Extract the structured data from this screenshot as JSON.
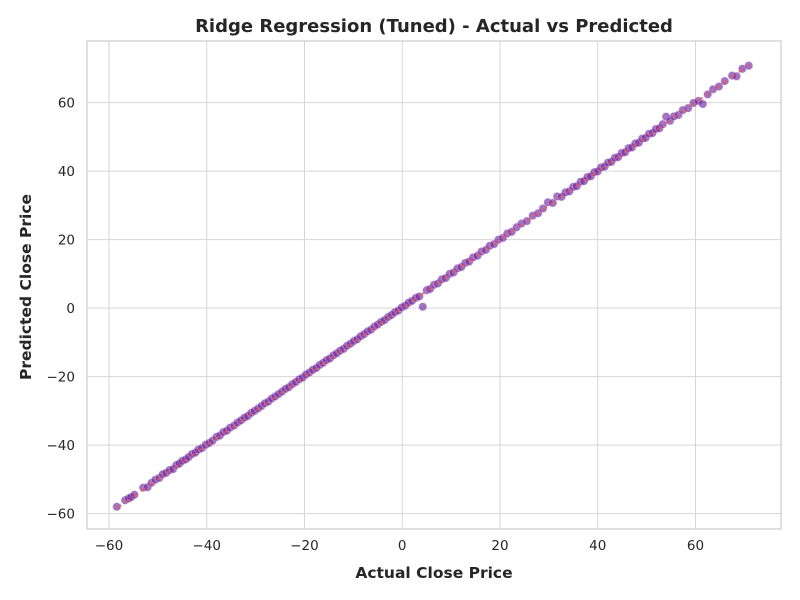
{
  "chart_data": {
    "type": "scatter",
    "title": "Ridge Regression (Tuned) - Actual vs Predicted",
    "xlabel": "Actual Close Price",
    "ylabel": "Predicted Close Price",
    "xlim": [
      -64.5,
      77.5
    ],
    "ylim": [
      -64.5,
      78.0
    ],
    "xticks": [
      -60,
      -40,
      -20,
      0,
      20,
      40,
      60
    ],
    "yticks": [
      -60,
      -40,
      -20,
      0,
      20,
      40,
      60
    ],
    "xtick_labels": [
      "−60",
      "−40",
      "−20",
      "0",
      "20",
      "40",
      "60"
    ],
    "ytick_labels": [
      "−60",
      "−40",
      "−20",
      "0",
      "20",
      "40",
      "60"
    ],
    "grid": true,
    "reference_line": {
      "x": [
        -58.5,
        71.0
      ],
      "y": [
        -58.5,
        71.0
      ],
      "color": "#e05a5a",
      "style": "dashed"
    },
    "series": [
      {
        "color": "#6a1b9a",
        "points": [
          [
            -58.4,
            -58.0
          ],
          [
            -56.7,
            -56.1
          ],
          [
            -56.0,
            -55.6
          ],
          [
            -55.5,
            -55.2
          ],
          [
            -54.8,
            -54.5
          ],
          [
            -53.0,
            -52.4
          ],
          [
            -52.1,
            -52.3
          ],
          [
            -51.3,
            -51.0
          ],
          [
            -50.5,
            -50.1
          ],
          [
            -49.7,
            -49.6
          ],
          [
            -49.0,
            -48.5
          ],
          [
            -48.3,
            -48.1
          ],
          [
            -47.6,
            -47.3
          ],
          [
            -46.9,
            -47.0
          ],
          [
            -46.2,
            -45.8
          ],
          [
            -45.6,
            -45.4
          ],
          [
            -45.0,
            -44.6
          ],
          [
            -44.3,
            -44.2
          ],
          [
            -43.7,
            -43.5
          ],
          [
            -43.0,
            -42.6
          ],
          [
            -42.3,
            -42.2
          ],
          [
            -41.7,
            -41.3
          ],
          [
            -41.0,
            -40.9
          ],
          [
            -40.2,
            -39.9
          ],
          [
            -39.5,
            -39.4
          ],
          [
            -38.8,
            -38.7
          ],
          [
            -38.0,
            -37.6
          ],
          [
            -37.3,
            -37.2
          ],
          [
            -36.6,
            -36.2
          ],
          [
            -35.9,
            -35.8
          ],
          [
            -35.2,
            -34.9
          ],
          [
            -34.4,
            -34.3
          ],
          [
            -33.7,
            -33.4
          ],
          [
            -33.0,
            -32.8
          ],
          [
            -32.3,
            -32.0
          ],
          [
            -31.6,
            -31.5
          ],
          [
            -30.9,
            -30.6
          ],
          [
            -30.2,
            -30.0
          ],
          [
            -29.5,
            -29.3
          ],
          [
            -28.8,
            -28.6
          ],
          [
            -28.1,
            -27.8
          ],
          [
            -27.4,
            -27.3
          ],
          [
            -26.7,
            -26.4
          ],
          [
            -26.0,
            -25.8
          ],
          [
            -25.3,
            -25.1
          ],
          [
            -24.6,
            -24.4
          ],
          [
            -23.9,
            -23.6
          ],
          [
            -23.2,
            -23.1
          ],
          [
            -22.5,
            -22.2
          ],
          [
            -21.8,
            -21.6
          ],
          [
            -21.1,
            -20.8
          ],
          [
            -20.4,
            -20.3
          ],
          [
            -19.7,
            -19.4
          ],
          [
            -19.0,
            -18.8
          ],
          [
            -18.3,
            -18.0
          ],
          [
            -17.6,
            -17.5
          ],
          [
            -16.9,
            -16.6
          ],
          [
            -16.2,
            -16.0
          ],
          [
            -15.5,
            -15.2
          ],
          [
            -14.8,
            -14.7
          ],
          [
            -14.1,
            -13.8
          ],
          [
            -13.4,
            -13.2
          ],
          [
            -12.7,
            -12.4
          ],
          [
            -12.0,
            -11.9
          ],
          [
            -11.3,
            -11.0
          ],
          [
            -10.6,
            -10.4
          ],
          [
            -9.9,
            -9.6
          ],
          [
            -9.2,
            -9.1
          ],
          [
            -8.5,
            -8.2
          ],
          [
            -7.8,
            -7.6
          ],
          [
            -7.1,
            -6.8
          ],
          [
            -6.4,
            -6.3
          ],
          [
            -5.7,
            -5.4
          ],
          [
            -5.0,
            -4.8
          ],
          [
            -4.3,
            -4.0
          ],
          [
            -3.6,
            -3.5
          ],
          [
            -2.9,
            -2.6
          ],
          [
            -2.2,
            -2.0
          ],
          [
            -1.5,
            -1.2
          ],
          [
            -0.8,
            -0.7
          ],
          [
            -0.1,
            0.2
          ],
          [
            0.6,
            0.7
          ],
          [
            1.3,
            1.6
          ],
          [
            2.0,
            2.1
          ],
          [
            2.8,
            3.0
          ],
          [
            3.5,
            3.4
          ],
          [
            4.2,
            0.4
          ],
          [
            5.0,
            5.2
          ],
          [
            5.7,
            5.6
          ],
          [
            6.5,
            6.8
          ],
          [
            7.3,
            7.2
          ],
          [
            8.1,
            8.4
          ],
          [
            8.9,
            8.8
          ],
          [
            9.7,
            10.0
          ],
          [
            10.5,
            10.4
          ],
          [
            11.3,
            11.6
          ],
          [
            12.1,
            12.0
          ],
          [
            12.9,
            13.2
          ],
          [
            13.7,
            13.6
          ],
          [
            14.5,
            14.8
          ],
          [
            15.4,
            15.3
          ],
          [
            16.2,
            16.5
          ],
          [
            17.1,
            17.0
          ],
          [
            17.9,
            18.2
          ],
          [
            18.8,
            18.7
          ],
          [
            19.7,
            20.0
          ],
          [
            20.6,
            20.5
          ],
          [
            21.5,
            21.8
          ],
          [
            22.4,
            22.3
          ],
          [
            23.4,
            23.6
          ],
          [
            24.4,
            24.7
          ],
          [
            25.5,
            25.4
          ],
          [
            26.7,
            27.0
          ],
          [
            27.8,
            27.7
          ],
          [
            28.8,
            29.1
          ],
          [
            29.8,
            30.9
          ],
          [
            30.8,
            30.7
          ],
          [
            31.7,
            32.6
          ],
          [
            32.6,
            32.5
          ],
          [
            33.4,
            33.8
          ],
          [
            34.2,
            34.1
          ],
          [
            35.0,
            35.4
          ],
          [
            35.7,
            35.6
          ],
          [
            36.5,
            36.9
          ],
          [
            37.2,
            37.1
          ],
          [
            37.9,
            38.3
          ],
          [
            38.6,
            38.5
          ],
          [
            39.3,
            39.7
          ],
          [
            40.0,
            39.9
          ],
          [
            40.7,
            41.1
          ],
          [
            41.4,
            41.3
          ],
          [
            42.1,
            42.5
          ],
          [
            42.8,
            42.7
          ],
          [
            43.5,
            43.9
          ],
          [
            44.2,
            44.1
          ],
          [
            44.9,
            45.3
          ],
          [
            45.6,
            45.5
          ],
          [
            46.3,
            46.7
          ],
          [
            47.0,
            46.9
          ],
          [
            47.7,
            48.1
          ],
          [
            48.4,
            48.3
          ],
          [
            49.1,
            49.5
          ],
          [
            49.8,
            49.7
          ],
          [
            50.5,
            50.9
          ],
          [
            51.2,
            51.1
          ],
          [
            51.9,
            52.3
          ],
          [
            52.6,
            52.5
          ],
          [
            53.3,
            53.7
          ],
          [
            54.0,
            55.9
          ],
          [
            54.8,
            54.7
          ],
          [
            55.6,
            56.0
          ],
          [
            56.5,
            56.4
          ],
          [
            57.4,
            57.8
          ],
          [
            58.5,
            58.4
          ],
          [
            59.6,
            59.9
          ],
          [
            60.6,
            60.5
          ],
          [
            61.5,
            59.6
          ],
          [
            62.5,
            62.4
          ],
          [
            63.6,
            63.9
          ],
          [
            64.8,
            64.7
          ],
          [
            66.0,
            66.3
          ],
          [
            67.5,
            67.9
          ],
          [
            68.4,
            67.7
          ],
          [
            69.6,
            69.9
          ],
          [
            70.9,
            70.8
          ]
        ]
      }
    ]
  }
}
